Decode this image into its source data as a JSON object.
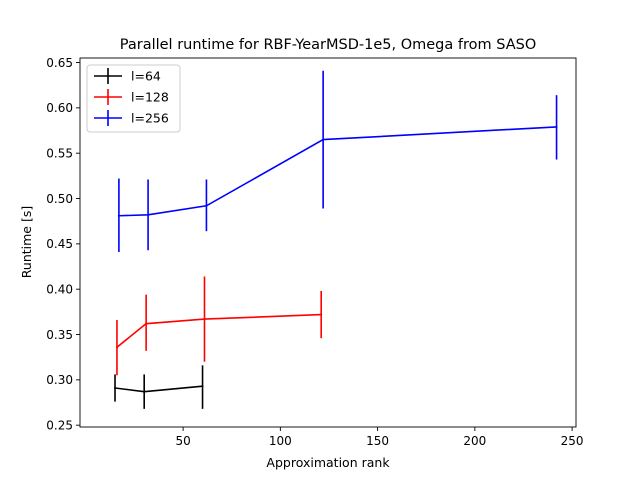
{
  "chart_data": {
    "type": "line",
    "title": "Parallel runtime for RBF-YearMSD-1e5, Omega from SASO",
    "xlabel": "Approximation rank",
    "ylabel": "Runtime [s]",
    "xlim": [
      -3,
      252
    ],
    "ylim": [
      0.248,
      0.655
    ],
    "xticks": [
      50,
      100,
      150,
      200,
      250
    ],
    "yticks": [
      0.25,
      0.3,
      0.35,
      0.4,
      0.45,
      0.5,
      0.55,
      0.6,
      0.65
    ],
    "xtick_labels": [
      "50",
      "100",
      "150",
      "200",
      "250"
    ],
    "ytick_labels": [
      "0.25",
      "0.30",
      "0.35",
      "0.40",
      "0.45",
      "0.50",
      "0.55",
      "0.60",
      "0.65"
    ],
    "grid": false,
    "legend_position": "top-left",
    "series": [
      {
        "name": "l=64",
        "color": "#000000",
        "x": [
          15,
          30,
          60
        ],
        "y": [
          0.291,
          0.287,
          0.293
        ],
        "err_low": [
          0.276,
          0.268,
          0.268
        ],
        "err_high": [
          0.306,
          0.306,
          0.316
        ]
      },
      {
        "name": "l=128",
        "color": "#ff0000",
        "x": [
          16,
          31,
          61,
          121
        ],
        "y": [
          0.336,
          0.362,
          0.367,
          0.372
        ],
        "err_low": [
          0.305,
          0.332,
          0.32,
          0.346
        ],
        "err_high": [
          0.366,
          0.394,
          0.414,
          0.398
        ]
      },
      {
        "name": "l=256",
        "color": "#0000ff",
        "x": [
          17,
          32,
          62,
          122,
          242
        ],
        "y": [
          0.481,
          0.482,
          0.492,
          0.565,
          0.579
        ],
        "err_low": [
          0.441,
          0.443,
          0.464,
          0.489,
          0.543
        ],
        "err_high": [
          0.522,
          0.521,
          0.521,
          0.641,
          0.614
        ]
      }
    ]
  }
}
